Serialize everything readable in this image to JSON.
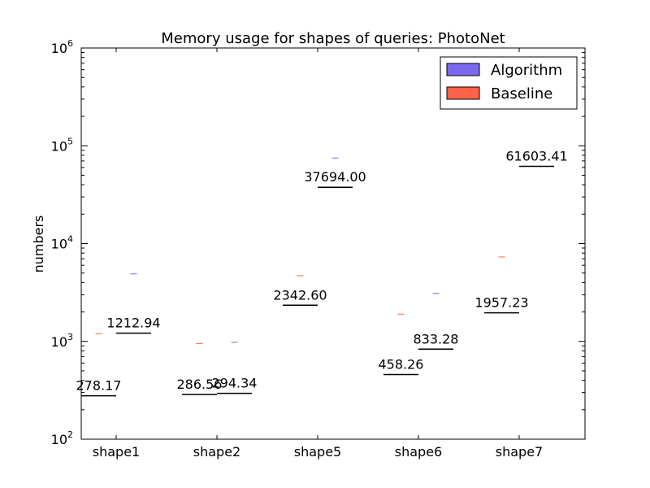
{
  "chart_data": {
    "type": "bar",
    "title": "Memory usage for shapes of queries: PhotoNet",
    "xlabel": "",
    "ylabel": "numbers",
    "yscale": "log",
    "ylim": [
      100,
      1000000
    ],
    "y_tick_base": "10",
    "y_tick_exponents": [
      "2",
      "3",
      "4",
      "5",
      "6"
    ],
    "categories": [
      "shape1",
      "shape2",
      "shape5",
      "shape6",
      "shape7"
    ],
    "series": [
      {
        "name": "Algorithm",
        "color": "#7b68ee",
        "values": [
          1212.94,
          294.34,
          37694.0,
          833.28,
          61603.41
        ],
        "labels": [
          "1212.94",
          "294.34",
          "37694.00",
          "833.28",
          "61603.41"
        ],
        "error_tops": [
          4900,
          980,
          75000,
          3100,
          null
        ]
      },
      {
        "name": "Baseline",
        "color": "#ff6347",
        "values": [
          278.17,
          286.56,
          2342.6,
          458.26,
          1957.23
        ],
        "labels": [
          "278.17",
          "286.56",
          "2342.60",
          "458.26",
          "1957.23"
        ],
        "error_tops": [
          1200,
          950,
          4700,
          1900,
          7300
        ]
      }
    ],
    "legend_position": "top-right",
    "grid": false
  }
}
